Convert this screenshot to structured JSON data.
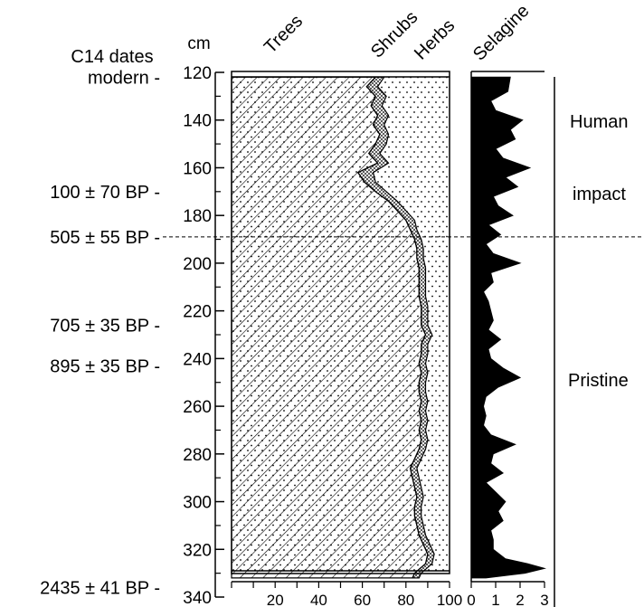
{
  "chart_data": [
    {
      "type": "area",
      "subtype": "stacked-percentage-pollen-diagram",
      "columns": [
        "Trees",
        "Shrubs",
        "Herbs"
      ],
      "y_unit": "cm",
      "y_range": [
        120,
        340
      ],
      "y_ticks": [
        120,
        140,
        160,
        180,
        200,
        220,
        240,
        260,
        280,
        300,
        320,
        340
      ],
      "x_range": [
        0,
        100
      ],
      "x_ticks": [
        20,
        40,
        60,
        80,
        100
      ],
      "depth": [
        122,
        126,
        130,
        134,
        138,
        142,
        146,
        150,
        154,
        158,
        162,
        166,
        170,
        174,
        178,
        182,
        186,
        190,
        194,
        198,
        202,
        206,
        210,
        214,
        218,
        222,
        226,
        230,
        234,
        238,
        242,
        246,
        250,
        254,
        258,
        262,
        266,
        270,
        274,
        278,
        282,
        286,
        290,
        294,
        298,
        302,
        306,
        310,
        314,
        318,
        322,
        326,
        330,
        332
      ],
      "series": [
        {
          "name": "Trees",
          "values": [
            66,
            62,
            66,
            64,
            67,
            65,
            68,
            66,
            63,
            67,
            58,
            61,
            66,
            72,
            76,
            80,
            82,
            84,
            85,
            85,
            86,
            86,
            86,
            86,
            87,
            87,
            87,
            89,
            87,
            87,
            86,
            87,
            86,
            86,
            87,
            86,
            87,
            86,
            87,
            86,
            84,
            82,
            83,
            84,
            85,
            84,
            84,
            85,
            86,
            88,
            90,
            89,
            84,
            83
          ]
        },
        {
          "name": "Shrubs",
          "values": [
            70,
            67,
            71,
            69,
            72,
            70,
            72,
            71,
            68,
            72,
            65,
            66,
            71,
            76,
            80,
            84,
            85,
            87,
            88,
            88,
            89,
            89,
            89,
            89,
            90,
            90,
            90,
            92,
            90,
            90,
            89,
            90,
            89,
            89,
            90,
            89,
            90,
            89,
            90,
            89,
            87,
            85,
            86,
            87,
            88,
            87,
            87,
            88,
            89,
            91,
            93,
            92,
            87,
            86
          ]
        },
        {
          "name": "Herbs",
          "values": [
            100,
            100,
            100,
            100,
            100,
            100,
            100,
            100,
            100,
            100,
            100,
            100,
            100,
            100,
            100,
            100,
            100,
            100,
            100,
            100,
            100,
            100,
            100,
            100,
            100,
            100,
            100,
            100,
            100,
            100,
            100,
            100,
            100,
            100,
            100,
            100,
            100,
            100,
            100,
            100,
            100,
            100,
            100,
            100,
            100,
            100,
            100,
            100,
            100,
            100,
            100,
            100,
            100,
            100
          ]
        }
      ]
    },
    {
      "type": "area",
      "subtype": "silhouette",
      "columns": [
        "Selaginella"
      ],
      "x_range": [
        0,
        3
      ],
      "x_ticks": [
        0,
        1,
        2,
        3
      ],
      "depth": [
        122,
        128,
        132,
        136,
        140,
        144,
        148,
        152,
        156,
        160,
        164,
        168,
        172,
        176,
        180,
        184,
        188,
        192,
        196,
        200,
        204,
        208,
        212,
        216,
        220,
        224,
        228,
        232,
        236,
        240,
        244,
        248,
        252,
        256,
        260,
        264,
        268,
        272,
        276,
        280,
        284,
        288,
        292,
        296,
        300,
        304,
        308,
        312,
        316,
        320,
        324,
        326,
        328,
        330,
        332
      ],
      "series": [
        {
          "name": "Selaginella",
          "values": [
            1.6,
            1.5,
            0.8,
            1.0,
            2.1,
            1.6,
            1.8,
            1.0,
            1.3,
            2.4,
            1.4,
            1.9,
            0.9,
            1.1,
            1.7,
            0.7,
            1.2,
            0.6,
            0.9,
            2.0,
            0.8,
            0.9,
            0.5,
            0.7,
            0.8,
            0.9,
            0.7,
            1.2,
            0.7,
            0.8,
            1.3,
            2.0,
            1.1,
            0.6,
            0.5,
            0.6,
            0.5,
            0.8,
            1.8,
            0.9,
            0.8,
            1.3,
            0.6,
            1.0,
            1.4,
            1.1,
            1.3,
            0.8,
            0.9,
            0.9,
            1.4,
            2.3,
            3.0,
            2.2,
            0.6
          ]
        }
      ]
    }
  ],
  "labels": {
    "c14_heading": "C14 dates",
    "cm": "cm",
    "trees": "Trees",
    "shrubs": "Shrubs",
    "herbs": "Herbs",
    "selaginella": "Selagine",
    "zone_human_1": "Human",
    "zone_human_2": "impact",
    "zone_pristine": "Pristine"
  },
  "dates": [
    {
      "label": "modern -",
      "depth": 122
    },
    {
      "label": "100 ± 70 BP -",
      "depth": 170
    },
    {
      "label": "505 ± 55 BP -",
      "depth": 189
    },
    {
      "label": "705 ± 35 BP -",
      "depth": 226
    },
    {
      "label": "895 ± 35 BP -",
      "depth": 243
    },
    {
      "label": "2435 ± 41 BP -",
      "depth": 336
    }
  ],
  "boundary_depth": 189
}
